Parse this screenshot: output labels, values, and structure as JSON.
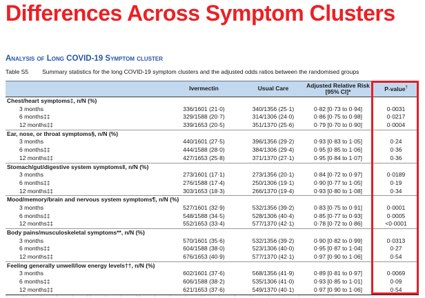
{
  "colors": {
    "title_red": "#ec2024",
    "highlight_red": "#e31e25",
    "heading_blue": "#2456a4",
    "header_bg": "#c2d8ee"
  },
  "title": "Differences Across Symptom Clusters",
  "section_heading": "Analysis of Long COVID-19 Symptom cluster",
  "caption": {
    "label": "Table S5",
    "text": "Summary statistics for the long COVID-19 symptom clusters and the adjusted odds ratios between the randomised groups"
  },
  "table": {
    "headers": {
      "ivermectin": "Ivermectin",
      "usual_care": "Usual Care",
      "arr_line1": "Adjusted Relative Risk",
      "arr_line2": "[95% CI]*",
      "p_value": "P-value",
      "p_value_sup": "†"
    },
    "sections": [
      {
        "label": "Chest/heart symptoms‡, n/N (%)",
        "rows": [
          {
            "time": "3 months",
            "ivermectin": "336/1601 (21·0)",
            "usual_care": "340/1356 (25·1)",
            "arr": "0·82 [0·73 to 0·94]",
            "p": "0·0031"
          },
          {
            "time": "6 months‡‡",
            "ivermectin": "329/1588 (20·7)",
            "usual_care": "314/1306 (24·0)",
            "arr": "0·86 [0·75 to 0·98]",
            "p": "0·0217"
          },
          {
            "time": "12 months‡‡",
            "ivermectin": "339/1653 (20·5)",
            "usual_care": "351/1370 (25·6)",
            "arr": "0·79 [0·70 to 0·90]",
            "p": "0·0004"
          }
        ]
      },
      {
        "label": "Ear, nose, or throat symptoms§, n/N (%)",
        "rows": [
          {
            "time": "3 months",
            "ivermectin": "440/1601 (27·5)",
            "usual_care": "396/1356 (29·2)",
            "arr": "0·93 [0·83 to 1·05]",
            "p": "0·24"
          },
          {
            "time": "6 months‡‡",
            "ivermectin": "444/1588 (28·0)",
            "usual_care": "384/1306 (29·4)",
            "arr": "0·95 [0·85 to 1·06]",
            "p": "0·36"
          },
          {
            "time": "12 months‡‡",
            "ivermectin": "427/1653 (25·8)",
            "usual_care": "371/1370 (27·1)",
            "arr": "0·95 [0·84 to 1·07]",
            "p": "0·36"
          }
        ]
      },
      {
        "label": "Stomach/gut/digestive system symptoms‖, n/N (%)",
        "rows": [
          {
            "time": "3 months",
            "ivermectin": "273/1601 (17·1)",
            "usual_care": "273/1356 (20·1)",
            "arr": "0·84 [0·72 to 0·97]",
            "p": "0·0189"
          },
          {
            "time": "6 months‡‡",
            "ivermectin": "276/1588 (17·4)",
            "usual_care": "250/1306 (19·1)",
            "arr": "0·90 [0·77 to 1·05]",
            "p": "0·19"
          },
          {
            "time": "12 months‡‡",
            "ivermectin": "303/1653 (18·3)",
            "usual_care": "266/1370 (19·4)",
            "arr": "0·93 [0·80 to 1·08]",
            "p": "0·34"
          }
        ]
      },
      {
        "label": "Mood/memory/brain and nervous system symptoms¶, n/N (%)",
        "rows": [
          {
            "time": "3 months",
            "ivermectin": "527/1601 (32·9)",
            "usual_care": "532/1356 (39·2)",
            "arr": "0·83 [0·75 to 0·91]",
            "p": "0·0001"
          },
          {
            "time": "6 months‡‡",
            "ivermectin": "548/1588 (34·5)",
            "usual_care": "528/1306 (40·4)",
            "arr": "0·85 [0·77 to 0·93]",
            "p": "0·0005"
          },
          {
            "time": "12 months‡‡",
            "ivermectin": "552/1653 (33·4)",
            "usual_care": "577/1370 (42·1)",
            "arr": "0·78 [0·72 to 0·86]",
            "p": "<0·0001"
          }
        ]
      },
      {
        "label": "Body pains/musculoskeletal symptoms**, n/N (%)",
        "rows": [
          {
            "time": "3 months",
            "ivermectin": "570/1601 (35·6)",
            "usual_care": "532/1356 (39·2)",
            "arr": "0·90 [0·82 to 0·99]",
            "p": "0·0313"
          },
          {
            "time": "6 months‡‡",
            "ivermectin": "604/1588 (38·0)",
            "usual_care": "523/1306 (40·0)",
            "arr": "0·95 [0·87 to 1·04]",
            "p": "0·27"
          },
          {
            "time": "12 months‡‡",
            "ivermectin": "676/1653 (40·9)",
            "usual_care": "577/1370 (42·1)",
            "arr": "0·97 [0·90 to 1·06]",
            "p": "0·54"
          }
        ]
      },
      {
        "label": "Feeling generally unwell/low energy levels††, n/N (%)",
        "rows": [
          {
            "time": "3 months",
            "ivermectin": "602/1601 (37·6)",
            "usual_care": "568/1356 (41·9)",
            "arr": "0·89 [0·81 to 0·97]",
            "p": "0·0069"
          },
          {
            "time": "6 months‡‡",
            "ivermectin": "606/1588 (38·2)",
            "usual_care": "535/1306 (41·0)",
            "arr": "0·93 [0·85 to 1·01]",
            "p": "0·09"
          },
          {
            "time": "12 months‡‡",
            "ivermectin": "621/1653 (37·6)",
            "usual_care": "549/1370 (40·1)",
            "arr": "0·97 [0·90 to 1·06]",
            "p": "0·54"
          }
        ]
      }
    ]
  },
  "footnote_fragment": "· ·· · · · ·· · · ·· · · · ·· · · ·· · · · ·· ·"
}
